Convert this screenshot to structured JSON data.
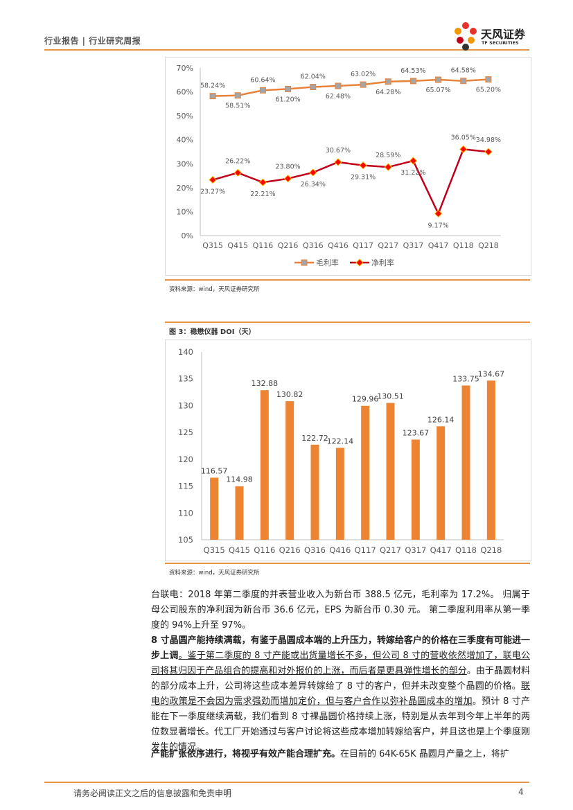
{
  "header": {
    "text": "行业报告 | 行业研究周报",
    "logo_cn": "天风证券",
    "logo_en": "TF SECURITIES"
  },
  "chart_data": [
    {
      "type": "line",
      "categories": [
        "Q315",
        "Q415",
        "Q116",
        "Q216",
        "Q316",
        "Q416",
        "Q117",
        "Q217",
        "Q317",
        "Q417",
        "Q118",
        "Q218"
      ],
      "ylim": [
        0,
        70
      ],
      "yticks": [
        "0%",
        "10%",
        "20%",
        "30%",
        "40%",
        "50%",
        "60%",
        "70%"
      ],
      "legend_position": "bottom",
      "series": [
        {
          "name": "毛利率",
          "color": "#e8823a",
          "values": [
            58.24,
            58.51,
            60.64,
            61.2,
            62.04,
            62.48,
            63.02,
            64.28,
            64.53,
            65.07,
            64.58,
            65.2
          ],
          "labels": [
            "58.24%",
            "58.51%",
            "60.64%",
            "61.20%",
            "62.04%",
            "62.48%",
            "63.02%",
            "64.28%",
            "64.53%",
            "65.07%",
            "64.58%",
            "65.20%"
          ]
        },
        {
          "name": "净利率",
          "color": "#c0001a",
          "values": [
            23.27,
            26.22,
            22.21,
            23.8,
            26.34,
            30.67,
            29.31,
            28.59,
            31.22,
            9.17,
            36.05,
            34.98
          ],
          "labels": [
            "23.27%",
            "26.22%",
            "22.21%",
            "23.80%",
            "26.34%",
            "30.67%",
            "29.31%",
            "28.59%",
            "31.22%",
            "9.17%",
            "36.05%",
            "34.98%"
          ]
        }
      ]
    },
    {
      "type": "bar",
      "title": "图 3：稳懋仪器 DOI（天）",
      "categories": [
        "Q315",
        "Q415",
        "Q116",
        "Q216",
        "Q316",
        "Q416",
        "Q117",
        "Q217",
        "Q317",
        "Q417",
        "Q118",
        "Q218"
      ],
      "values": [
        116.57,
        114.98,
        132.88,
        130.82,
        122.72,
        122.14,
        129.96,
        130.51,
        123.67,
        126.14,
        133.75,
        134.67
      ],
      "labels": [
        "116.57",
        "114.98",
        "132.88",
        "130.82",
        "122.72",
        "122.14",
        "129.96",
        "130.51",
        "123.67",
        "126.14",
        "133.75",
        "134.67"
      ],
      "ylim": [
        105,
        140
      ],
      "yticks": [
        "105",
        "110",
        "115",
        "120",
        "125",
        "130",
        "135",
        "140"
      ],
      "color": "#ed8433"
    }
  ],
  "source1": "资料来源：wind，天风证券研究所",
  "source2": "资料来源：wind，天风证券研究所",
  "paragraphs": {
    "p1": "台联电：2018 年第二季度的并表营业收入为新台币 388.5 亿元，毛利率为 17.2%。 归属于母公司股东的净利润为新台币 36.6 亿元，EPS 为新台币 0.30 元。 第二季度利用率从第一季度的 94%上升至 97%。",
    "p2_bold": "8 寸晶圆产能持续满载，有鉴于晶圆成本端的上升压力，转嫁给客户的价格在三季度有可能进一步上调",
    "p2_ul1": "。鉴于第二季度的 8 寸产能或出货量增长不多，但公司 8 寸的营收依然增加了，联电公司将其归因于产品组合的提高和对外报价的上涨，而后者是更具弹性增长的部分",
    "p2_mid": "。由于晶圆材料的部分成本上升，公司将这些成本差异转嫁给了 8 寸的客户，但并未改变整个晶圆的价格。",
    "p2_ul2": "联电的政策是不会因为需求强劲而增加定价，但与客户合作以弥补晶圆成本的增加",
    "p2_end": "。预计 8 寸产能在下一季度继续满载，我们看到 8 寸裸晶圆价格持续上涨，特别是从去年到今年上半年的两位数显著增长。代工厂开始通过与客户讨论将这些成本增加转嫁给客户，并且这也是上个季度刚发生的情况。",
    "p3_bold": "产能扩张依序进行，将视乎有效产能合理扩充。",
    "p3_rest": "在目前的 64K-65K 晶圆月产量之上，将扩"
  },
  "footer": {
    "disclaimer": "请务必阅读正文之后的信息披露和免责申明",
    "page": "4"
  }
}
